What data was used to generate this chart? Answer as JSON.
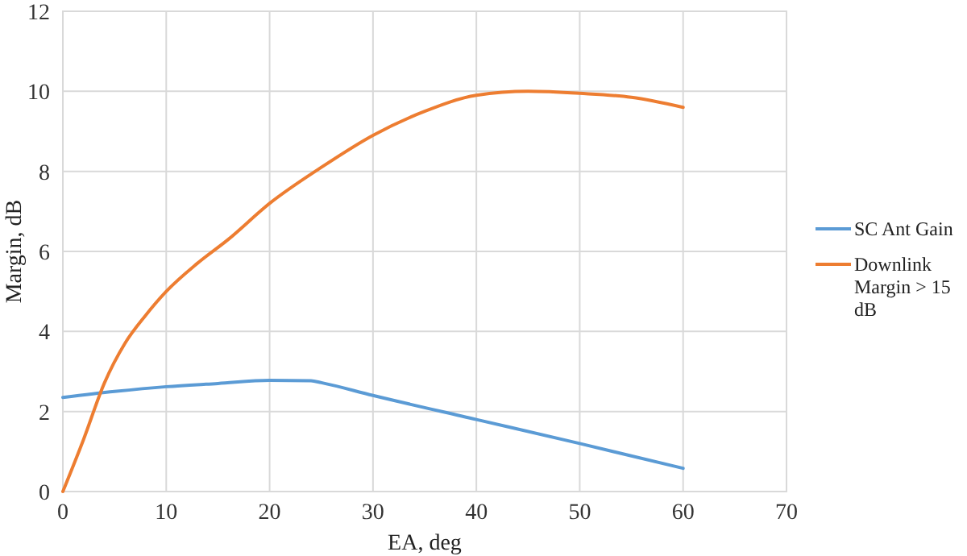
{
  "chart_data": {
    "type": "line",
    "xlabel": "EA, deg",
    "ylabel": "Margin, dB",
    "xlim": [
      0,
      70
    ],
    "xticks": [
      0,
      10,
      20,
      30,
      40,
      50,
      60,
      70
    ],
    "ylim": [
      0,
      12
    ],
    "yticks": [
      0,
      2,
      4,
      6,
      8,
      10,
      12
    ],
    "grid": true,
    "legend": "right",
    "series": [
      {
        "name": "SC Ant Gain",
        "color": "#5b9bd5",
        "x": [
          0,
          5,
          10,
          15,
          20,
          24,
          25,
          30,
          40,
          50,
          60
        ],
        "values": [
          2.35,
          2.5,
          2.62,
          2.7,
          2.78,
          2.77,
          2.72,
          2.4,
          1.8,
          1.2,
          0.58
        ]
      },
      {
        "name": "Downlink Margin > 15 dB",
        "color": "#ed7d31",
        "x": [
          0,
          2,
          4,
          6,
          8,
          10,
          13,
          16,
          20,
          25,
          30,
          35,
          40,
          45,
          50,
          55,
          60
        ],
        "values": [
          0,
          1.3,
          2.7,
          3.7,
          4.4,
          5.0,
          5.7,
          6.3,
          7.2,
          8.1,
          8.9,
          9.5,
          9.9,
          10.0,
          9.95,
          9.85,
          9.6
        ]
      }
    ]
  }
}
